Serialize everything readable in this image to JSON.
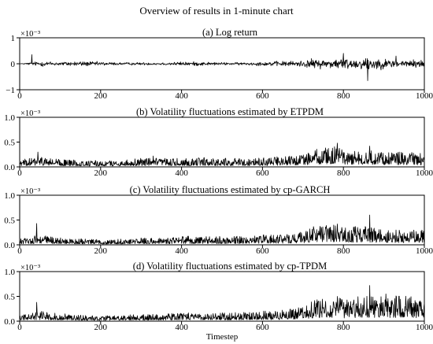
{
  "figure_title": "Overview of results in 1-minute chart",
  "chart_data": [
    {
      "type": "line",
      "title": "(a) Log return",
      "scale_label": "×10⁻³",
      "x_range": [
        0,
        1000
      ],
      "ylim": [
        -1,
        1
      ],
      "x_ticks": [
        0,
        200,
        400,
        600,
        800,
        1000
      ],
      "y_ticks": [
        -1,
        0,
        1
      ],
      "y_tick_labels": [
        "−1",
        "0",
        "1"
      ],
      "series_kind": "return",
      "series": [
        {
          "x": [
            0,
            50,
            100,
            150,
            200,
            250,
            300,
            350,
            400,
            450,
            500,
            550,
            600,
            650,
            700,
            720,
            750,
            780,
            800,
            850,
            860,
            900,
            950,
            1000
          ],
          "values": [
            0,
            0.2,
            0.15,
            0.2,
            0.15,
            0.1,
            0.1,
            0.1,
            0.15,
            0.15,
            0.1,
            0.1,
            0.15,
            0.2,
            0.25,
            0.35,
            0.35,
            0.4,
            0.45,
            0.4,
            0.6,
            0.35,
            0.3,
            0.3
          ],
          "extremes": [
            [
              30,
              0.35
            ],
            [
              800,
              0.4
            ],
            [
              860,
              -0.65
            ],
            [
              930,
              0.3
            ]
          ]
        }
      ]
    },
    {
      "type": "line",
      "title": "(b) Volatility fluctuations estimated by ETPDM",
      "scale_label": "×10⁻³",
      "x_range": [
        0,
        1000
      ],
      "ylim": [
        0,
        1
      ],
      "x_ticks": [
        0,
        200,
        400,
        600,
        800,
        1000
      ],
      "y_ticks": [
        0,
        0.5,
        1
      ],
      "y_tick_labels": [
        "0.0",
        "0.5",
        "1.0"
      ],
      "series_kind": "volatility",
      "series": [
        {
          "x": [
            0,
            50,
            100,
            150,
            200,
            250,
            300,
            350,
            400,
            450,
            500,
            550,
            600,
            650,
            700,
            720,
            750,
            780,
            800,
            850,
            900,
            950,
            1000
          ],
          "values": [
            0.08,
            0.12,
            0.09,
            0.08,
            0.07,
            0.08,
            0.1,
            0.1,
            0.1,
            0.11,
            0.1,
            0.1,
            0.11,
            0.12,
            0.15,
            0.2,
            0.22,
            0.25,
            0.2,
            0.2,
            0.18,
            0.17,
            0.16
          ],
          "extremes": [
            [
              45,
              0.3
            ],
            [
              330,
              0.22
            ],
            [
              785,
              0.48
            ],
            [
              865,
              0.42
            ],
            [
              938,
              0.3
            ]
          ]
        }
      ]
    },
    {
      "type": "line",
      "title": "(c) Volatility fluctuations estimated by cp-GARCH",
      "scale_label": "×10⁻³",
      "x_range": [
        0,
        1000
      ],
      "ylim": [
        0,
        1
      ],
      "x_ticks": [
        0,
        200,
        400,
        600,
        800,
        1000
      ],
      "y_ticks": [
        0,
        0.5,
        1
      ],
      "y_tick_labels": [
        "0.0",
        "0.5",
        "1.0"
      ],
      "series_kind": "volatility",
      "series": [
        {
          "x": [
            0,
            50,
            100,
            150,
            200,
            250,
            300,
            350,
            400,
            450,
            500,
            550,
            600,
            650,
            700,
            720,
            750,
            780,
            800,
            850,
            900,
            950,
            1000
          ],
          "values": [
            0.07,
            0.12,
            0.08,
            0.07,
            0.06,
            0.07,
            0.08,
            0.08,
            0.1,
            0.1,
            0.1,
            0.1,
            0.12,
            0.12,
            0.16,
            0.22,
            0.22,
            0.25,
            0.2,
            0.22,
            0.18,
            0.18,
            0.17
          ],
          "extremes": [
            [
              42,
              0.43
            ],
            [
              785,
              0.42
            ],
            [
              865,
              0.6
            ],
            [
              835,
              0.35
            ],
            [
              930,
              0.3
            ]
          ]
        }
      ]
    },
    {
      "type": "line",
      "title": "(d) Volatility fluctuations estimated by cp-TPDM",
      "scale_label": "×10⁻³",
      "x_range": [
        0,
        1000
      ],
      "ylim": [
        0,
        1
      ],
      "x_ticks": [
        0,
        200,
        400,
        600,
        800,
        1000
      ],
      "y_ticks": [
        0,
        0.5,
        1
      ],
      "y_tick_labels": [
        "0.0",
        "0.5",
        "1.0"
      ],
      "xlabel": "Timestep",
      "series_kind": "volatility",
      "series": [
        {
          "x": [
            0,
            50,
            100,
            150,
            200,
            250,
            300,
            350,
            400,
            450,
            500,
            550,
            600,
            650,
            700,
            720,
            750,
            780,
            800,
            850,
            900,
            950,
            1000
          ],
          "values": [
            0.07,
            0.12,
            0.09,
            0.07,
            0.06,
            0.07,
            0.08,
            0.08,
            0.1,
            0.1,
            0.1,
            0.1,
            0.12,
            0.13,
            0.17,
            0.25,
            0.26,
            0.3,
            0.25,
            0.3,
            0.28,
            0.3,
            0.25
          ],
          "extremes": [
            [
              42,
              0.38
            ],
            [
              785,
              0.5
            ],
            [
              865,
              0.72
            ],
            [
              905,
              0.55
            ],
            [
              960,
              0.45
            ]
          ]
        }
      ]
    }
  ]
}
